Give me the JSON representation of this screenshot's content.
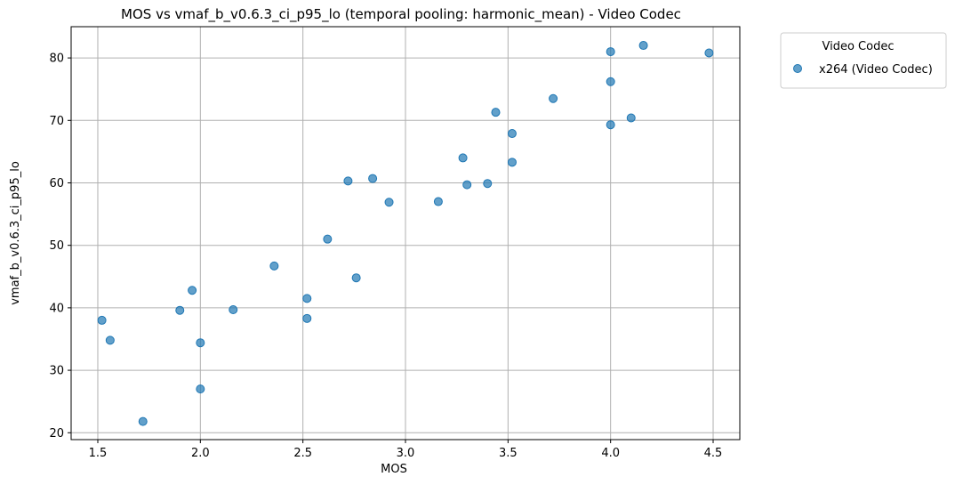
{
  "chart_data": {
    "type": "scatter",
    "title": "MOS vs vmaf_b_v0.6.3_ci_p95_lo (temporal pooling: harmonic_mean) - Video Codec",
    "xlabel": "MOS",
    "ylabel": "vmaf_b_v0.6.3_ci_p95_lo",
    "xlim": [
      1.37,
      4.63
    ],
    "ylim": [
      18.9,
      85.0
    ],
    "xticks": [
      "1.5",
      "2.0",
      "2.5",
      "3.0",
      "3.5",
      "4.0",
      "4.5"
    ],
    "xtick_values": [
      1.5,
      2.0,
      2.5,
      3.0,
      3.5,
      4.0,
      4.5
    ],
    "yticks": [
      "20",
      "30",
      "40",
      "50",
      "60",
      "70",
      "80"
    ],
    "ytick_values": [
      20,
      30,
      40,
      50,
      60,
      70,
      80
    ],
    "grid": true,
    "legend": {
      "title": "Video Codec",
      "placement": "outside-top-right"
    },
    "point_color": "#1f77b4",
    "series": [
      {
        "name": "x264 (Video Codec)",
        "x": [
          1.52,
          1.56,
          1.72,
          1.9,
          1.96,
          2.0,
          2.0,
          2.16,
          2.36,
          2.52,
          2.52,
          2.62,
          2.72,
          2.76,
          2.84,
          2.92,
          3.16,
          3.28,
          3.3,
          3.4,
          3.44,
          3.52,
          3.52,
          3.72,
          4.0,
          4.0,
          4.0,
          4.1,
          4.16,
          4.48
        ],
        "y": [
          38.0,
          34.8,
          21.8,
          39.6,
          42.8,
          34.4,
          27.0,
          39.7,
          46.7,
          41.5,
          38.3,
          51.0,
          60.3,
          44.8,
          60.7,
          56.9,
          57.0,
          64.0,
          59.7,
          59.9,
          71.3,
          67.9,
          63.3,
          73.5,
          81.0,
          76.2,
          69.3,
          70.4,
          82.0,
          80.8
        ]
      }
    ]
  }
}
